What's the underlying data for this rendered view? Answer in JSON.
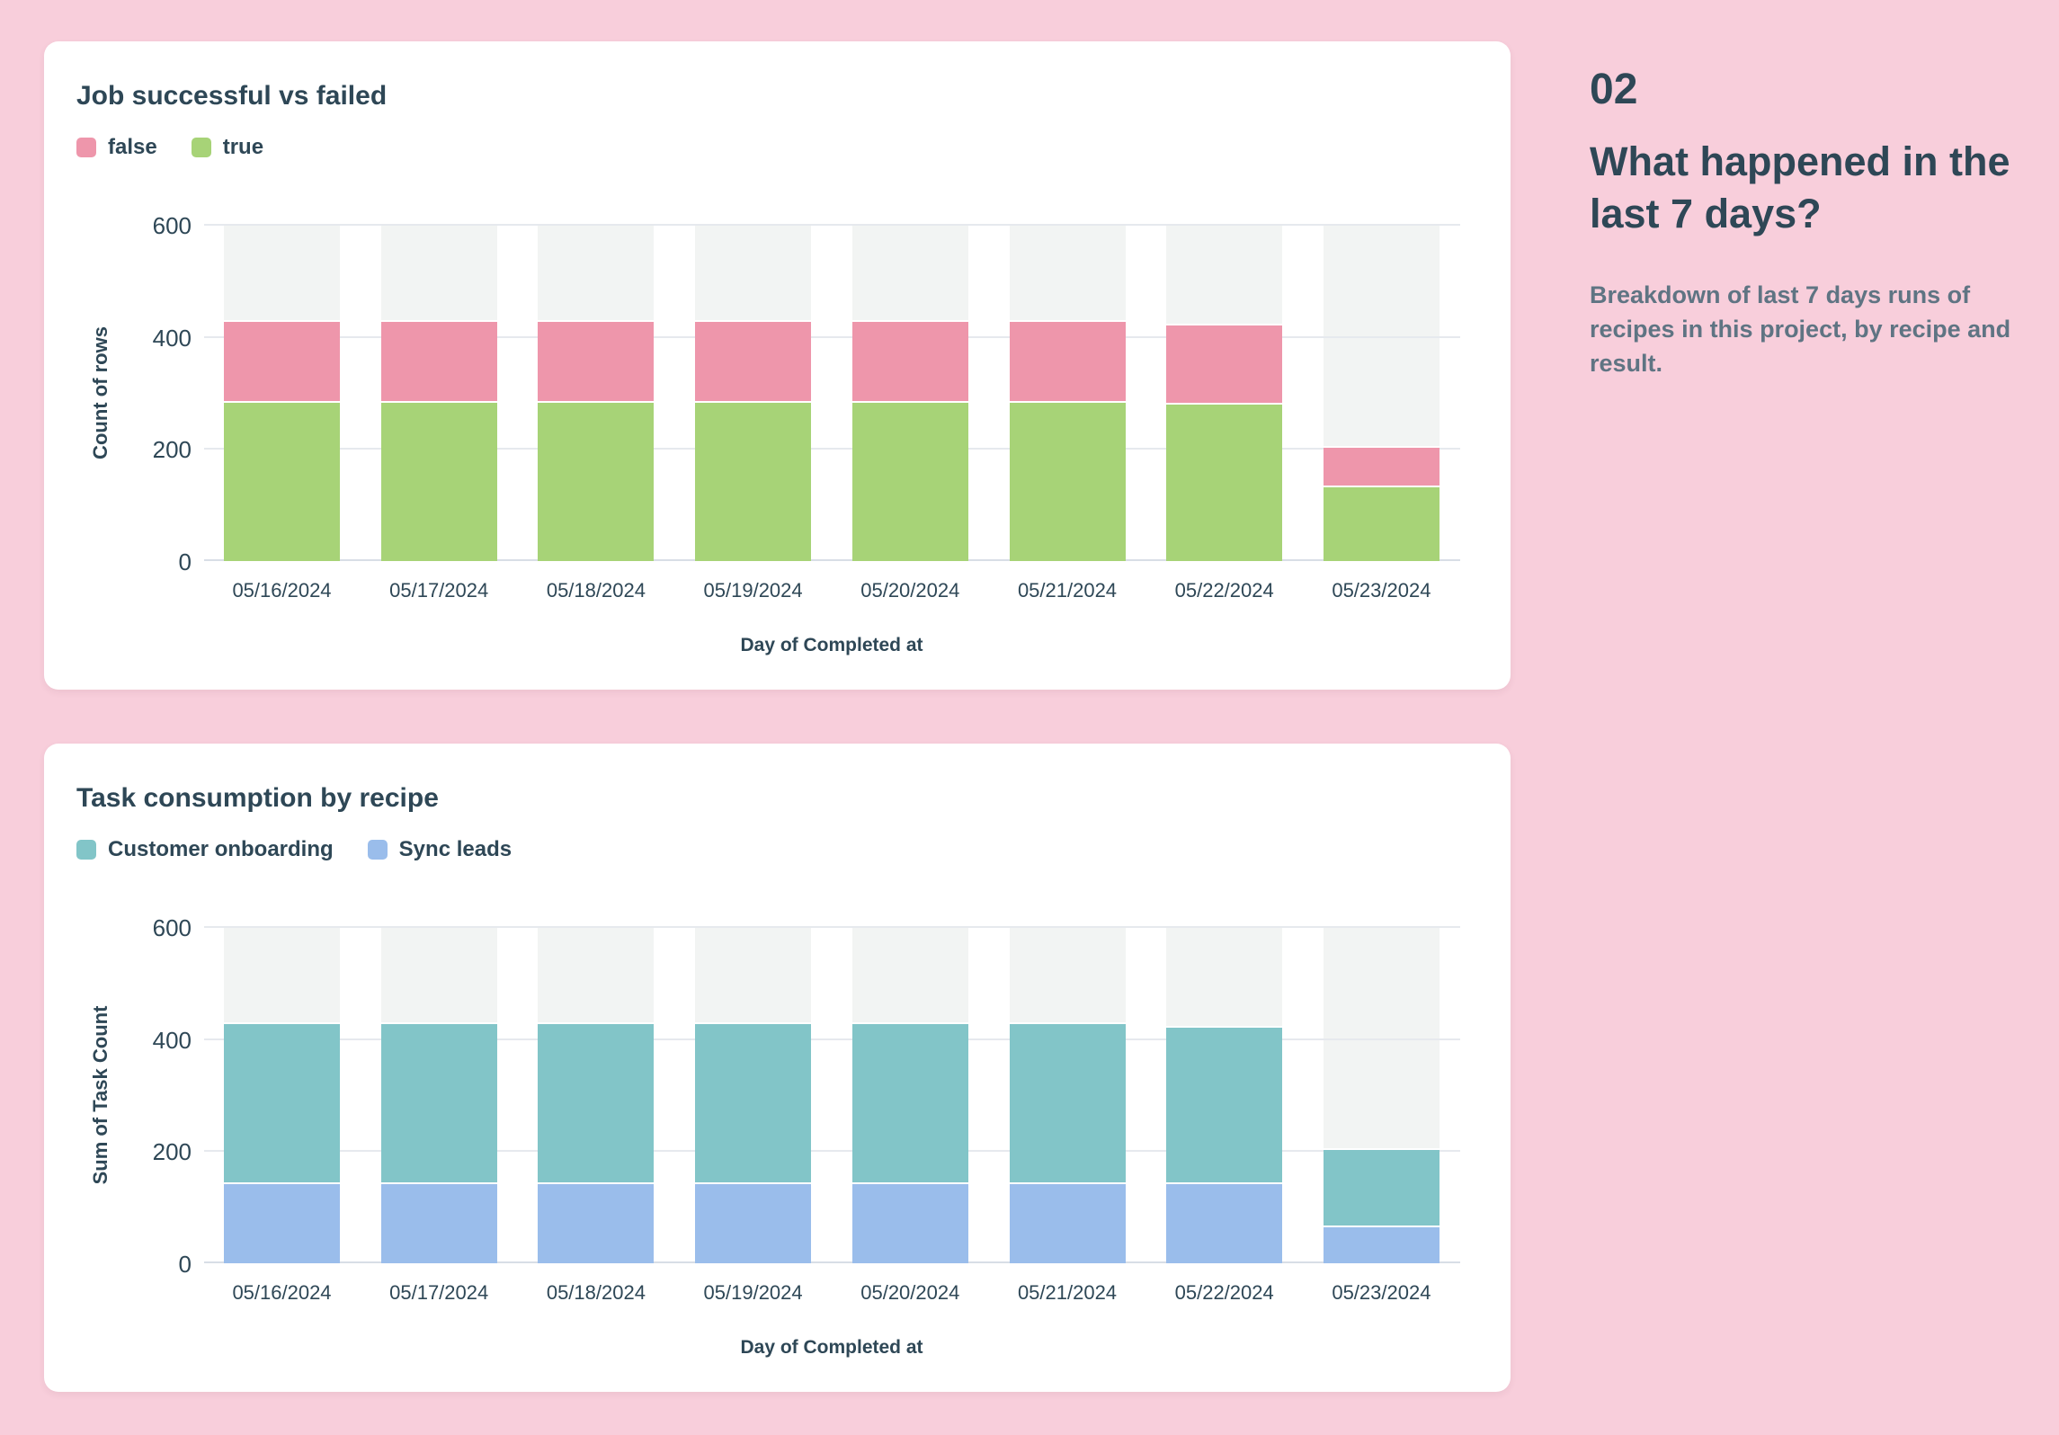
{
  "page": {
    "background_color": "#f8cedb",
    "card_color": "#ffffff",
    "heading_color": "#2e4756",
    "muted_text_color": "#5f7483"
  },
  "aside": {
    "number": "02",
    "heading": "What happened in the last 7 days?",
    "description": "Breakdown of last 7 days runs of recipes in this project, by recipe and result."
  },
  "chart_data": [
    {
      "type": "bar",
      "stacked": true,
      "title": "Job successful vs failed",
      "xlabel": "Day of Completed at",
      "ylabel": "Count of rows",
      "ylim": [
        0,
        600
      ],
      "yticks": [
        0,
        200,
        400,
        600
      ],
      "grid": true,
      "legend_position": "top-left",
      "column_background_color": "#f2f4f3",
      "categories": [
        "05/16/2024",
        "05/17/2024",
        "05/18/2024",
        "05/19/2024",
        "05/20/2024",
        "05/21/2024",
        "05/22/2024",
        "05/23/2024"
      ],
      "legend": [
        {
          "label": "false",
          "color": "#ee96ab"
        },
        {
          "label": "true",
          "color": "#a7d377"
        }
      ],
      "series": [
        {
          "name": "true",
          "color": "#a7d377",
          "values": [
            285,
            285,
            285,
            285,
            285,
            285,
            282,
            135
          ]
        },
        {
          "name": "false",
          "color": "#ee96ab",
          "values": [
            145,
            145,
            145,
            145,
            145,
            145,
            142,
            70
          ]
        }
      ]
    },
    {
      "type": "bar",
      "stacked": true,
      "title": "Task consumption by recipe",
      "xlabel": "Day of Completed at",
      "ylabel": "Sum of Task Count",
      "ylim": [
        0,
        600
      ],
      "yticks": [
        0,
        200,
        400,
        600
      ],
      "grid": true,
      "legend_position": "top-left",
      "column_background_color": "#f2f4f3",
      "categories": [
        "05/16/2024",
        "05/17/2024",
        "05/18/2024",
        "05/19/2024",
        "05/20/2024",
        "05/21/2024",
        "05/22/2024",
        "05/23/2024"
      ],
      "legend": [
        {
          "label": "Customer onboarding",
          "color": "#82c5c8"
        },
        {
          "label": "Sync leads",
          "color": "#9abdeb"
        }
      ],
      "series": [
        {
          "name": "Sync leads",
          "color": "#9abdeb",
          "values": [
            145,
            145,
            145,
            145,
            145,
            145,
            144,
            68
          ]
        },
        {
          "name": "Customer onboarding",
          "color": "#82c5c8",
          "values": [
            285,
            285,
            285,
            285,
            285,
            285,
            280,
            137
          ]
        }
      ]
    }
  ]
}
